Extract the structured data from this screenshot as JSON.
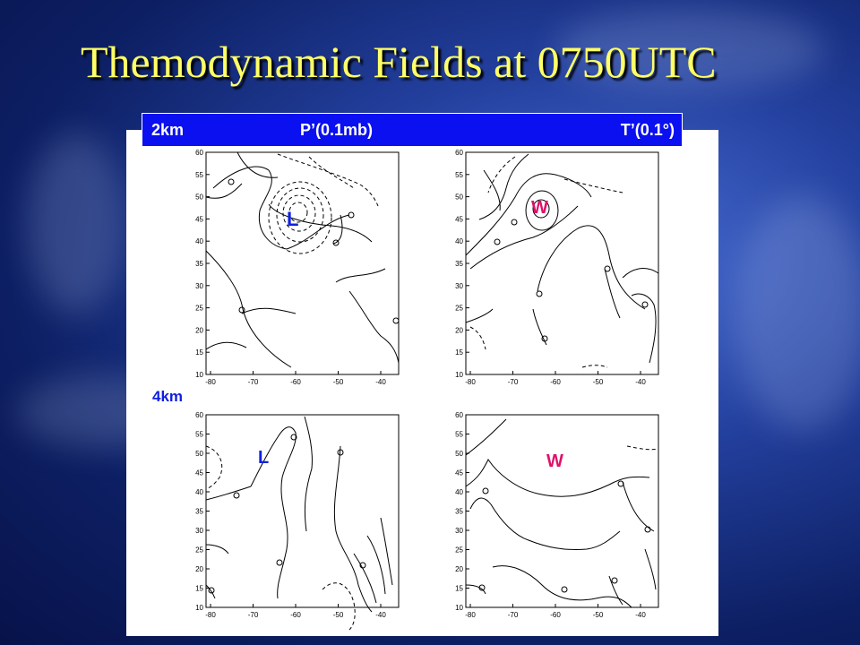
{
  "title": "Themodynamic Fields at 0750UTC",
  "header": {
    "level": "2km",
    "pressure_label": "P’(0.1mb)",
    "temperature_label": "T’(0.1°)"
  },
  "lower_level_label": "4km",
  "axes": {
    "x_ticks": [
      "-80",
      "-70",
      "-60",
      "-50",
      "-40"
    ],
    "y_ticks": [
      "10",
      "15",
      "20",
      "25",
      "30",
      "35",
      "40",
      "45",
      "50",
      "55",
      "60"
    ]
  },
  "markers": {
    "low": "L",
    "warm": "W"
  },
  "colors": {
    "title": "#ffff66",
    "header_bg": "#0a10f0",
    "low_marker": "#1020e0",
    "warm_marker": "#e0106a"
  }
}
